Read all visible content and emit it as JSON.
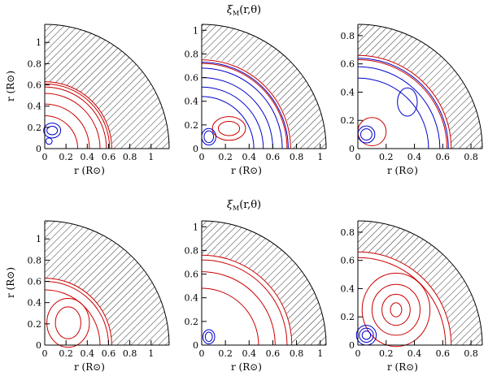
{
  "figure": {
    "titles": [
      {
        "text": "ξ",
        "sub": "M",
        "suffix": "(r,θ)"
      },
      {
        "text": "ξ",
        "sub": "M",
        "suffix": "(r,θ)"
      }
    ]
  },
  "colors": {
    "positive": "#cc0000",
    "negative": "#0000cc",
    "frame": "#000000",
    "hatch": "#000000"
  },
  "chart_data": [
    {
      "type": "contour",
      "row": 0,
      "col": 0,
      "star_radius": 1.17,
      "core_radius": 0.63,
      "xlim": [
        0,
        1.17
      ],
      "ylim": [
        0,
        1.17
      ],
      "xticks": [
        0,
        0.2,
        0.4,
        0.6,
        0.8,
        1
      ],
      "yticks": [
        0,
        0.2,
        0.4,
        0.6,
        0.8,
        1
      ],
      "xtick_labels": [
        "0",
        "0.2",
        "0.4",
        "0.6",
        "0.8",
        "1"
      ],
      "ytick_labels": [
        "0",
        "0.2",
        "0.4",
        "0.6",
        "0.8",
        "1"
      ],
      "xlabel": "r   (R⊙)",
      "ylabel": "r  (R⊙)",
      "red_contours": [
        0.63,
        0.61,
        0.58,
        0.52,
        0.42,
        0.31
      ],
      "blue_loops": [
        [
          0.07,
          0.17,
          0.08,
          0.07
        ],
        [
          0.07,
          0.17,
          0.05,
          0.04
        ],
        [
          0.04,
          0.07,
          0.03,
          0.03
        ]
      ]
    },
    {
      "type": "contour",
      "row": 0,
      "col": 1,
      "star_radius": 1.05,
      "core_radius": 0.76,
      "xlim": [
        0,
        1.05
      ],
      "ylim": [
        0,
        1.05
      ],
      "xticks": [
        0,
        0.2,
        0.4,
        0.6,
        0.8,
        1
      ],
      "yticks": [
        0,
        0.2,
        0.4,
        0.6,
        0.8,
        1
      ],
      "xtick_labels": [
        "0",
        "0.2",
        "0.4",
        "0.6",
        "0.8",
        "1"
      ],
      "ytick_labels": [
        "0",
        "0.2",
        "0.4",
        "0.6",
        "0.8",
        "1"
      ],
      "xlabel": "r   (R⊙)",
      "ylabel": "",
      "red_contours": [
        0.75,
        0.72
      ],
      "blue_contours": [
        0.73,
        0.68,
        0.6,
        0.52,
        0.44
      ],
      "red_loops": [
        [
          0.23,
          0.17,
          0.14,
          0.1
        ],
        [
          0.23,
          0.17,
          0.09,
          0.06
        ]
      ],
      "blue_loops": [
        [
          0.06,
          0.1,
          0.06,
          0.07
        ],
        [
          0.06,
          0.1,
          0.04,
          0.05
        ]
      ]
    },
    {
      "type": "contour",
      "row": 0,
      "col": 2,
      "star_radius": 0.88,
      "core_radius": 0.66,
      "xlim": [
        0,
        0.88
      ],
      "ylim": [
        0,
        0.88
      ],
      "xticks": [
        0,
        0.2,
        0.4,
        0.6,
        0.8
      ],
      "yticks": [
        0,
        0.2,
        0.4,
        0.6,
        0.8
      ],
      "xtick_labels": [
        "0",
        "0.2",
        "0.4",
        "0.6",
        "0.8"
      ],
      "ytick_labels": [
        "0",
        "0.2",
        "0.4",
        "0.6",
        "0.8"
      ],
      "xlabel": "r   (R⊙)",
      "ylabel": "",
      "red_contours": [
        0.66,
        0.63
      ],
      "blue_contours": [
        0.64,
        0.58,
        0.5
      ],
      "red_loops": [
        [
          0.1,
          0.12,
          0.1,
          0.1
        ]
      ],
      "blue_loops": [
        [
          0.35,
          0.33,
          0.07,
          0.1
        ],
        [
          0.06,
          0.1,
          0.06,
          0.06
        ],
        [
          0.06,
          0.1,
          0.04,
          0.04
        ]
      ]
    },
    {
      "type": "contour",
      "row": 1,
      "col": 0,
      "star_radius": 1.17,
      "core_radius": 0.63,
      "xlim": [
        0,
        1.17
      ],
      "ylim": [
        0,
        1.17
      ],
      "xticks": [
        0,
        0.2,
        0.4,
        0.6,
        0.8,
        1
      ],
      "yticks": [
        0,
        0.2,
        0.4,
        0.6,
        0.8,
        1
      ],
      "xtick_labels": [
        "0",
        "0.2",
        "0.4",
        "0.6",
        "0.8",
        "1"
      ],
      "ytick_labels": [
        "0",
        "0.2",
        "0.4",
        "0.6",
        "0.8",
        "1"
      ],
      "xlabel": "r   (R⊙)",
      "ylabel": "r  (R⊙)",
      "red_contours": [
        0.63,
        0.6,
        0.52
      ],
      "red_loops": [
        [
          0.22,
          0.21,
          0.2,
          0.23
        ],
        [
          0.22,
          0.21,
          0.12,
          0.15
        ]
      ]
    },
    {
      "type": "contour",
      "row": 1,
      "col": 1,
      "star_radius": 1.05,
      "core_radius": 0.76,
      "xlim": [
        0,
        1.05
      ],
      "ylim": [
        0,
        1.05
      ],
      "xticks": [
        0,
        0.2,
        0.4,
        0.6,
        0.8,
        1
      ],
      "yticks": [
        0,
        0.2,
        0.4,
        0.6,
        0.8,
        1
      ],
      "xtick_labels": [
        "0",
        "0.2",
        "0.4",
        "0.6",
        "0.8",
        "1"
      ],
      "ytick_labels": [
        "0",
        "0.2",
        "0.4",
        "0.6",
        "0.8",
        "1"
      ],
      "xlabel": "r   (R⊙)",
      "ylabel": "",
      "red_contours": [
        0.76,
        0.72,
        0.62,
        0.48
      ],
      "blue_loops": [
        [
          0.06,
          0.07,
          0.05,
          0.06
        ],
        [
          0.06,
          0.07,
          0.03,
          0.04
        ]
      ]
    },
    {
      "type": "contour",
      "row": 1,
      "col": 2,
      "star_radius": 0.88,
      "core_radius": 0.66,
      "xlim": [
        0,
        0.88
      ],
      "ylim": [
        0,
        0.88
      ],
      "xticks": [
        0,
        0.2,
        0.4,
        0.6,
        0.8
      ],
      "yticks": [
        0,
        0.2,
        0.4,
        0.6,
        0.8
      ],
      "xtick_labels": [
        "0",
        "0.2",
        "0.4",
        "0.6",
        "0.8"
      ],
      "ytick_labels": [
        "0",
        "0.2",
        "0.4",
        "0.6",
        "0.8"
      ],
      "xlabel": "r   (R⊙)",
      "ylabel": "",
      "red_contours": [
        0.66,
        0.62
      ],
      "red_loops": [
        [
          0.27,
          0.25,
          0.24,
          0.26
        ],
        [
          0.27,
          0.25,
          0.17,
          0.18
        ],
        [
          0.27,
          0.25,
          0.1,
          0.11
        ],
        [
          0.27,
          0.25,
          0.04,
          0.05
        ]
      ],
      "blue_loops": [
        [
          0.06,
          0.07,
          0.07,
          0.07
        ],
        [
          0.06,
          0.07,
          0.05,
          0.05
        ],
        [
          0.06,
          0.07,
          0.03,
          0.03
        ]
      ]
    }
  ]
}
